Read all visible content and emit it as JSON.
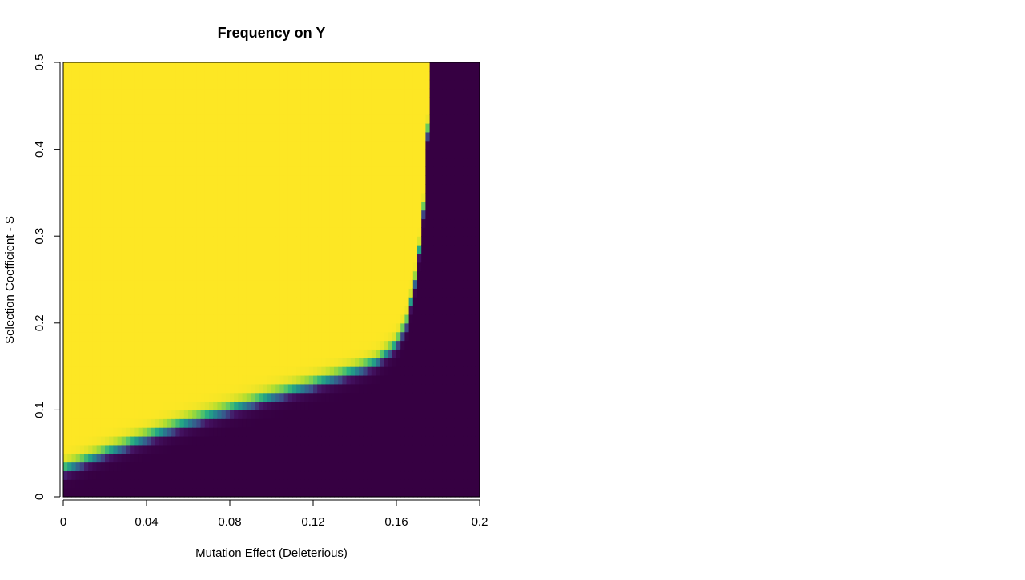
{
  "chart_data": {
    "type": "heatmap",
    "title": "Frequency on Y",
    "xlabel": "Mutation Effect (Deleterious)",
    "ylabel": "Selection Coefficient - S",
    "xlim": [
      0,
      0.2
    ],
    "ylim": [
      0,
      0.5
    ],
    "x_ticks": [
      {
        "value": 0,
        "label": "0"
      },
      {
        "value": 0.04,
        "label": "0.04"
      },
      {
        "value": 0.08,
        "label": "0.08"
      },
      {
        "value": 0.12,
        "label": "0.12"
      },
      {
        "value": 0.16,
        "label": "0.16"
      },
      {
        "value": 0.2,
        "label": "0.2"
      }
    ],
    "y_ticks": [
      {
        "value": 0,
        "label": "0"
      },
      {
        "value": 0.1,
        "label": "0.1"
      },
      {
        "value": 0.2,
        "label": "0.2"
      },
      {
        "value": 0.3,
        "label": "0.3"
      },
      {
        "value": 0.4,
        "label": "0.4"
      },
      {
        "value": 0.5,
        "label": "0.5"
      }
    ],
    "colormap": "viridis",
    "color_low": "#360042",
    "color_high": "#FDE724",
    "value_range": [
      0,
      1
    ],
    "boundary": [
      {
        "x": 0,
        "s": 0.031
      },
      {
        "x": 0.02,
        "s": 0.051
      },
      {
        "x": 0.04,
        "s": 0.069
      },
      {
        "x": 0.06,
        "s": 0.086
      },
      {
        "x": 0.08,
        "s": 0.101
      },
      {
        "x": 0.1,
        "s": 0.116
      },
      {
        "x": 0.12,
        "s": 0.13
      },
      {
        "x": 0.14,
        "s": 0.145
      },
      {
        "x": 0.15,
        "s": 0.155
      },
      {
        "x": 0.16,
        "s": 0.175
      },
      {
        "x": 0.165,
        "s": 0.2
      },
      {
        "x": 0.17,
        "s": 0.26
      },
      {
        "x": 0.173,
        "s": 0.33
      },
      {
        "x": 0.175,
        "s": 0.42
      },
      {
        "x": 0.176,
        "s": 0.5
      }
    ],
    "grid": false,
    "legend": "none"
  }
}
